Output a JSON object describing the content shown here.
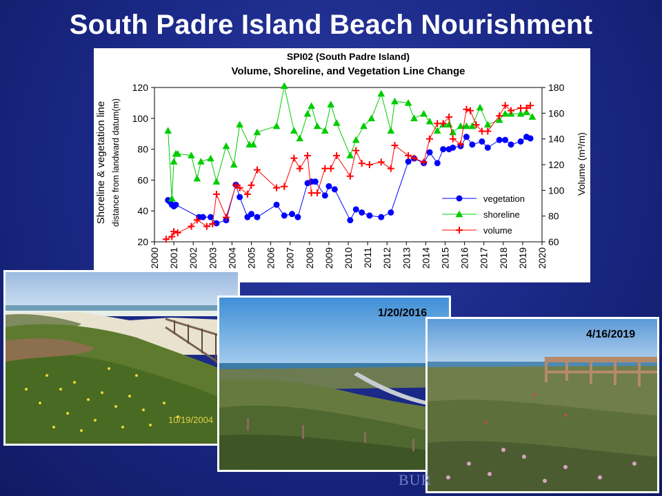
{
  "slide": {
    "title": "South Padre Island Beach Nourishment",
    "watermark": "BUR"
  },
  "photos": [
    {
      "date_stamp": "10/19/2004"
    },
    {
      "date_label": "1/20/2016"
    },
    {
      "date_label": "4/16/2019"
    }
  ],
  "chart_data": {
    "type": "line",
    "title": "SPI02 (South Padre Island)",
    "subtitle": "Volume, Shoreline, and Vegetation Line Change",
    "ylabel_main": "Shoreline & vegetation line",
    "ylabel_sub": "distance from landward datum(m)",
    "y2label": "Volume (m³/m)",
    "xlabel": "",
    "xlim": [
      2000,
      2020
    ],
    "ylim": [
      20,
      120
    ],
    "y2lim": [
      60,
      180
    ],
    "xticks": [
      "2000",
      "2001",
      "2002",
      "2003",
      "2004",
      "2005",
      "2006",
      "2007",
      "2008",
      "2009",
      "2010",
      "2011",
      "2012",
      "2013",
      "2014",
      "2015",
      "2016",
      "2017",
      "2018",
      "2019",
      "2020"
    ],
    "yticks": [
      "20",
      "40",
      "60",
      "80",
      "100",
      "120"
    ],
    "y2ticks": [
      "60",
      "80",
      "100",
      "120",
      "140",
      "160",
      "180"
    ],
    "legend_position": "lower-right",
    "series": [
      {
        "name": "vegetation",
        "axis": "left",
        "color": "#0000ff",
        "marker": "circle",
        "x": [
          2000.7,
          2000.8,
          2000.9,
          2001.0,
          2001.1,
          2002.3,
          2002.5,
          2002.9,
          2003.2,
          2003.7,
          2004.2,
          2004.4,
          2004.8,
          2005.0,
          2005.3,
          2006.3,
          2006.7,
          2007.1,
          2007.4,
          2007.9,
          2008.1,
          2008.3,
          2008.8,
          2009.0,
          2009.3,
          2010.1,
          2010.4,
          2010.7,
          2011.1,
          2011.7,
          2012.2,
          2013.1,
          2013.4,
          2013.9,
          2014.2,
          2014.6,
          2014.9,
          2015.2,
          2015.4,
          2015.8,
          2016.1,
          2016.4,
          2016.9,
          2017.2,
          2017.8,
          2018.1,
          2018.4,
          2018.9,
          2019.2,
          2019.4
        ],
        "values": [
          47,
          46,
          44,
          43,
          44,
          36,
          36,
          36,
          32,
          34,
          57,
          49,
          36,
          38,
          36,
          44,
          37,
          38,
          36,
          58,
          59,
          59,
          50,
          56,
          54,
          34,
          41,
          39,
          37,
          36,
          39,
          72,
          74,
          71,
          78,
          71,
          80,
          80,
          81,
          82,
          88,
          83,
          85,
          81,
          86,
          86,
          83,
          85,
          88,
          87
        ]
      },
      {
        "name": "shoreline",
        "axis": "left",
        "color": "#00cc00",
        "marker": "triangle",
        "x": [
          2000.7,
          2000.9,
          2001.0,
          2001.1,
          2001.2,
          2001.9,
          2002.2,
          2002.4,
          2002.9,
          2003.2,
          2003.7,
          2004.1,
          2004.4,
          2004.9,
          2005.1,
          2005.3,
          2006.3,
          2006.7,
          2007.2,
          2007.5,
          2007.9,
          2008.1,
          2008.4,
          2008.8,
          2009.1,
          2009.4,
          2010.1,
          2010.4,
          2010.8,
          2011.2,
          2011.7,
          2012.2,
          2012.4,
          2013.1,
          2013.4,
          2013.9,
          2014.2,
          2014.6,
          2014.9,
          2015.2,
          2015.4,
          2015.8,
          2016.1,
          2016.4,
          2016.8,
          2017.2,
          2017.8,
          2018.1,
          2018.4,
          2018.9,
          2019.2,
          2019.5
        ],
        "values": [
          92,
          48,
          72,
          77,
          77,
          76,
          61,
          72,
          74,
          59,
          82,
          70,
          96,
          83,
          83,
          91,
          95,
          121,
          92,
          87,
          103,
          108,
          95,
          92,
          109,
          97,
          76,
          86,
          95,
          100,
          116,
          92,
          111,
          110,
          100,
          103,
          98,
          92,
          96,
          96,
          91,
          95,
          95,
          95,
          107,
          96,
          99,
          103,
          103,
          103,
          104,
          101
        ]
      },
      {
        "name": "volume",
        "axis": "right",
        "color": "#ff0000",
        "marker": "plus",
        "x": [
          2000.6,
          2000.9,
          2001.0,
          2001.2,
          2001.9,
          2002.2,
          2002.7,
          2003.0,
          2003.2,
          2003.7,
          2004.2,
          2004.4,
          2004.8,
          2005.0,
          2005.3,
          2006.3,
          2006.7,
          2007.2,
          2007.5,
          2007.9,
          2008.1,
          2008.4,
          2008.8,
          2009.1,
          2009.4,
          2010.1,
          2010.4,
          2010.7,
          2011.1,
          2011.7,
          2012.2,
          2012.4,
          2013.1,
          2013.4,
          2013.9,
          2014.2,
          2014.6,
          2014.9,
          2015.2,
          2015.4,
          2015.8,
          2016.1,
          2016.3,
          2016.6,
          2016.9,
          2017.2,
          2017.8,
          2018.1,
          2018.4,
          2018.9,
          2019.2,
          2019.4
        ],
        "values": [
          62,
          64,
          68,
          67,
          72,
          77,
          72,
          74,
          97,
          79,
          104,
          102,
          97,
          104,
          116,
          102,
          103,
          125,
          117,
          127,
          98,
          98,
          117,
          117,
          127,
          111,
          131,
          121,
          120,
          122,
          117,
          135,
          127,
          125,
          122,
          140,
          152,
          152,
          157,
          140,
          136,
          163,
          162,
          151,
          146,
          146,
          158,
          166,
          162,
          164,
          164,
          166
        ]
      }
    ]
  }
}
